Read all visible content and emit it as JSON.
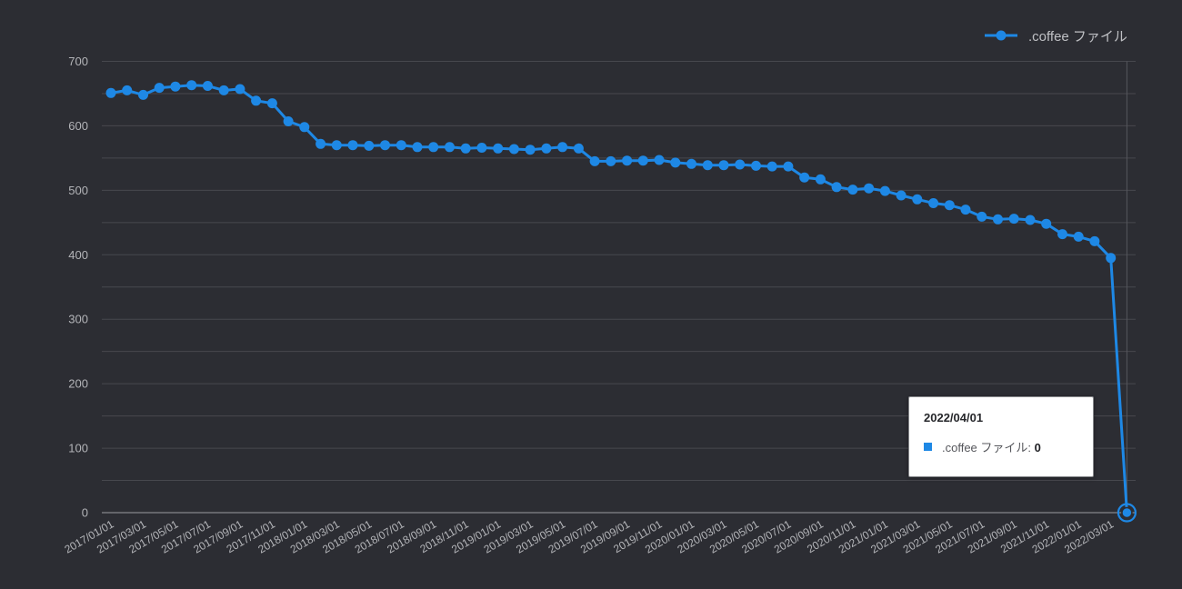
{
  "chart": {
    "legend": {
      "label": ".coffee ファイル"
    },
    "tooltip": {
      "title": "2022/04/01",
      "series_label": ".coffee ファイル",
      "separator": ": ",
      "value": "0"
    },
    "colors": {
      "background": "#2c2d33",
      "line": "#1e88e5",
      "grid": "#47484e",
      "baseline": "#9c9da2",
      "crosshair": "#55565c",
      "axis_text": "#b3b4b8",
      "legend_text": "#bfc0c4",
      "tooltip_bg": "#ffffff",
      "tooltip_title_text": "#26272b",
      "tooltip_body_text": "#55565b"
    }
  },
  "chart_data": {
    "type": "line",
    "title": "",
    "legend_position": "top-right",
    "grid": true,
    "ylim": [
      0,
      700
    ],
    "y_major_ticks": [
      0,
      100,
      200,
      300,
      400,
      500,
      600,
      700
    ],
    "y_minor_step": 50,
    "x_tick_every": 2,
    "x_tick_labels": [
      "2017/01/01",
      "2017/03/01",
      "2017/05/01",
      "2017/07/01",
      "2017/09/01",
      "2017/11/01",
      "2018/01/01",
      "2018/03/01",
      "2018/05/01",
      "2018/07/01",
      "2018/09/01",
      "2018/11/01",
      "2019/01/01",
      "2019/03/01",
      "2019/05/01",
      "2019/07/01",
      "2019/09/01",
      "2019/11/01",
      "2020/01/01",
      "2020/03/01",
      "2020/05/01",
      "2020/07/01",
      "2020/09/01",
      "2020/11/01",
      "2021/01/01",
      "2021/03/01",
      "2021/05/01",
      "2021/07/01",
      "2021/09/01",
      "2021/11/01",
      "2022/01/01",
      "2022/03/01"
    ],
    "x": [
      "2017/01/01",
      "2017/02/01",
      "2017/03/01",
      "2017/04/01",
      "2017/05/01",
      "2017/06/01",
      "2017/07/01",
      "2017/08/01",
      "2017/09/01",
      "2017/10/01",
      "2017/11/01",
      "2017/12/01",
      "2018/01/01",
      "2018/02/01",
      "2018/03/01",
      "2018/04/01",
      "2018/05/01",
      "2018/06/01",
      "2018/07/01",
      "2018/08/01",
      "2018/09/01",
      "2018/10/01",
      "2018/11/01",
      "2018/12/01",
      "2019/01/01",
      "2019/02/01",
      "2019/03/01",
      "2019/04/01",
      "2019/05/01",
      "2019/06/01",
      "2019/07/01",
      "2019/08/01",
      "2019/09/01",
      "2019/10/01",
      "2019/11/01",
      "2019/12/01",
      "2020/01/01",
      "2020/02/01",
      "2020/03/01",
      "2020/04/01",
      "2020/05/01",
      "2020/06/01",
      "2020/07/01",
      "2020/08/01",
      "2020/09/01",
      "2020/10/01",
      "2020/11/01",
      "2020/12/01",
      "2021/01/01",
      "2021/02/01",
      "2021/03/01",
      "2021/04/01",
      "2021/05/01",
      "2021/06/01",
      "2021/07/01",
      "2021/08/01",
      "2021/09/01",
      "2021/10/01",
      "2021/11/01",
      "2021/12/01",
      "2022/01/01",
      "2022/02/01",
      "2022/03/01",
      "2022/04/01"
    ],
    "series": [
      {
        "name": ".coffee ファイル",
        "values": [
          651,
          655,
          648,
          659,
          661,
          663,
          662,
          655,
          657,
          639,
          635,
          607,
          598,
          572,
          570,
          570,
          569,
          570,
          570,
          567,
          567,
          567,
          565,
          566,
          565,
          564,
          563,
          565,
          567,
          565,
          545,
          545,
          546,
          546,
          547,
          543,
          541,
          539,
          539,
          540,
          538,
          537,
          537,
          520,
          517,
          505,
          501,
          503,
          499,
          492,
          486,
          480,
          477,
          470,
          459,
          455,
          456,
          454,
          448,
          432,
          428,
          421,
          395,
          0
        ]
      }
    ],
    "selected_point": {
      "date": "2022/04/01",
      "value": 0,
      "index": 63
    }
  }
}
